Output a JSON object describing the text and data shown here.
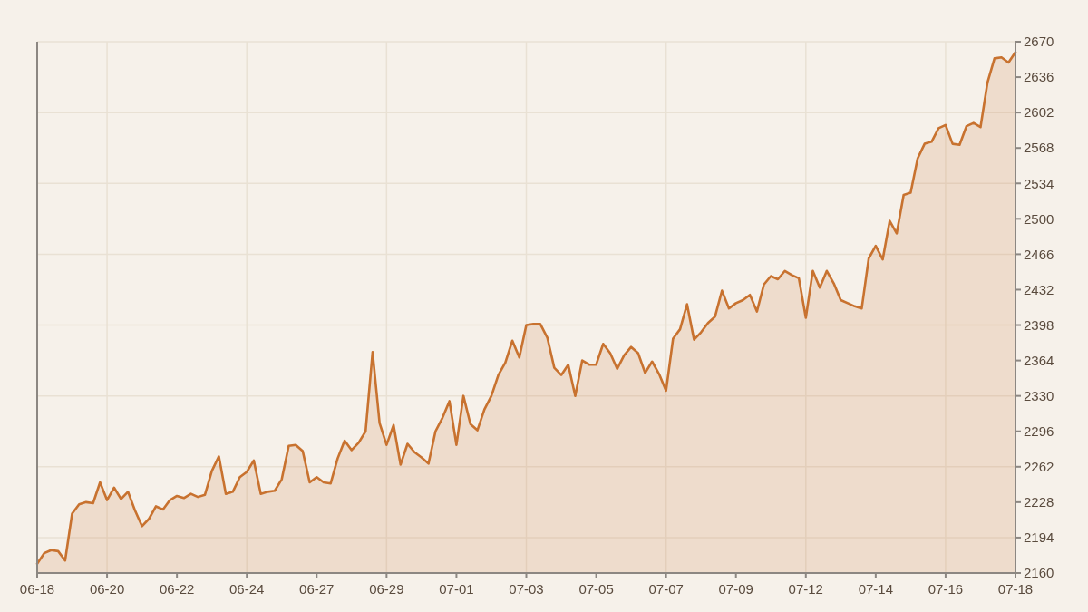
{
  "chart_data": {
    "type": "area",
    "categories": [
      "06-18",
      null,
      null,
      null,
      null,
      null,
      null,
      null,
      null,
      null,
      "06-20",
      null,
      null,
      null,
      null,
      null,
      null,
      null,
      null,
      null,
      "06-22",
      null,
      null,
      null,
      null,
      null,
      null,
      null,
      null,
      null,
      "06-24",
      null,
      null,
      null,
      null,
      null,
      null,
      null,
      null,
      null,
      "06-27",
      null,
      null,
      null,
      null,
      null,
      null,
      null,
      null,
      null,
      "06-29",
      null,
      null,
      null,
      null,
      null,
      null,
      null,
      null,
      null,
      "07-01",
      null,
      null,
      null,
      null,
      null,
      null,
      null,
      null,
      null,
      "07-03",
      null,
      null,
      null,
      null,
      null,
      null,
      null,
      null,
      null,
      "07-05",
      null,
      null,
      null,
      null,
      null,
      null,
      null,
      null,
      null,
      "07-07",
      null,
      null,
      null,
      null,
      null,
      null,
      null,
      null,
      null,
      "07-09",
      null,
      null,
      null,
      null,
      null,
      null,
      null,
      null,
      null,
      "07-12",
      null,
      null,
      null,
      null,
      null,
      null,
      null,
      null,
      null,
      "07-14",
      null,
      null,
      null,
      null,
      null,
      null,
      null,
      null,
      null,
      "07-16",
      null,
      null,
      null,
      null,
      null,
      null,
      null,
      null,
      null,
      "07-18"
    ],
    "values": [
      2169,
      2179,
      2182,
      2181,
      2172,
      2217,
      2226,
      2228,
      2227,
      2247,
      2230,
      2242,
      2231,
      2238,
      2220,
      2205,
      2212,
      2224,
      2221,
      2230,
      2234,
      2232,
      2236,
      2233,
      2235,
      2258,
      2272,
      2236,
      2238,
      2252,
      2257,
      2268,
      2236,
      2238,
      2239,
      2250,
      2282,
      2283,
      2277,
      2247,
      2252,
      2247,
      2246,
      2270,
      2287,
      2278,
      2285,
      2296,
      2372,
      2304,
      2283,
      2302,
      2264,
      2284,
      2276,
      2271,
      2265,
      2296,
      2309,
      2325,
      2283,
      2330,
      2303,
      2297,
      2317,
      2330,
      2350,
      2362,
      2383,
      2367,
      2398,
      2399,
      2399,
      2386,
      2357,
      2350,
      2360,
      2330,
      2364,
      2360,
      2360,
      2380,
      2371,
      2356,
      2369,
      2377,
      2371,
      2352,
      2363,
      2351,
      2335,
      2385,
      2394,
      2418,
      2384,
      2391,
      2400,
      2406,
      2431,
      2414,
      2419,
      2422,
      2427,
      2411,
      2437,
      2445,
      2442,
      2450,
      2446,
      2443,
      2405,
      2450,
      2434,
      2450,
      2438,
      2422,
      2419,
      2416,
      2414,
      2462,
      2474,
      2461,
      2498,
      2486,
      2523,
      2525,
      2558,
      2572,
      2574,
      2587,
      2590,
      2572,
      2571,
      2589,
      2592,
      2588,
      2631,
      2654,
      2655,
      2650,
      2660
    ],
    "color": "#c8722f",
    "ylim": [
      2160,
      2670
    ],
    "yticks": [
      2160,
      2194,
      2228,
      2262,
      2296,
      2330,
      2364,
      2398,
      2432,
      2466,
      2500,
      2534,
      2568,
      2602,
      2636,
      2670
    ],
    "grid": true
  }
}
